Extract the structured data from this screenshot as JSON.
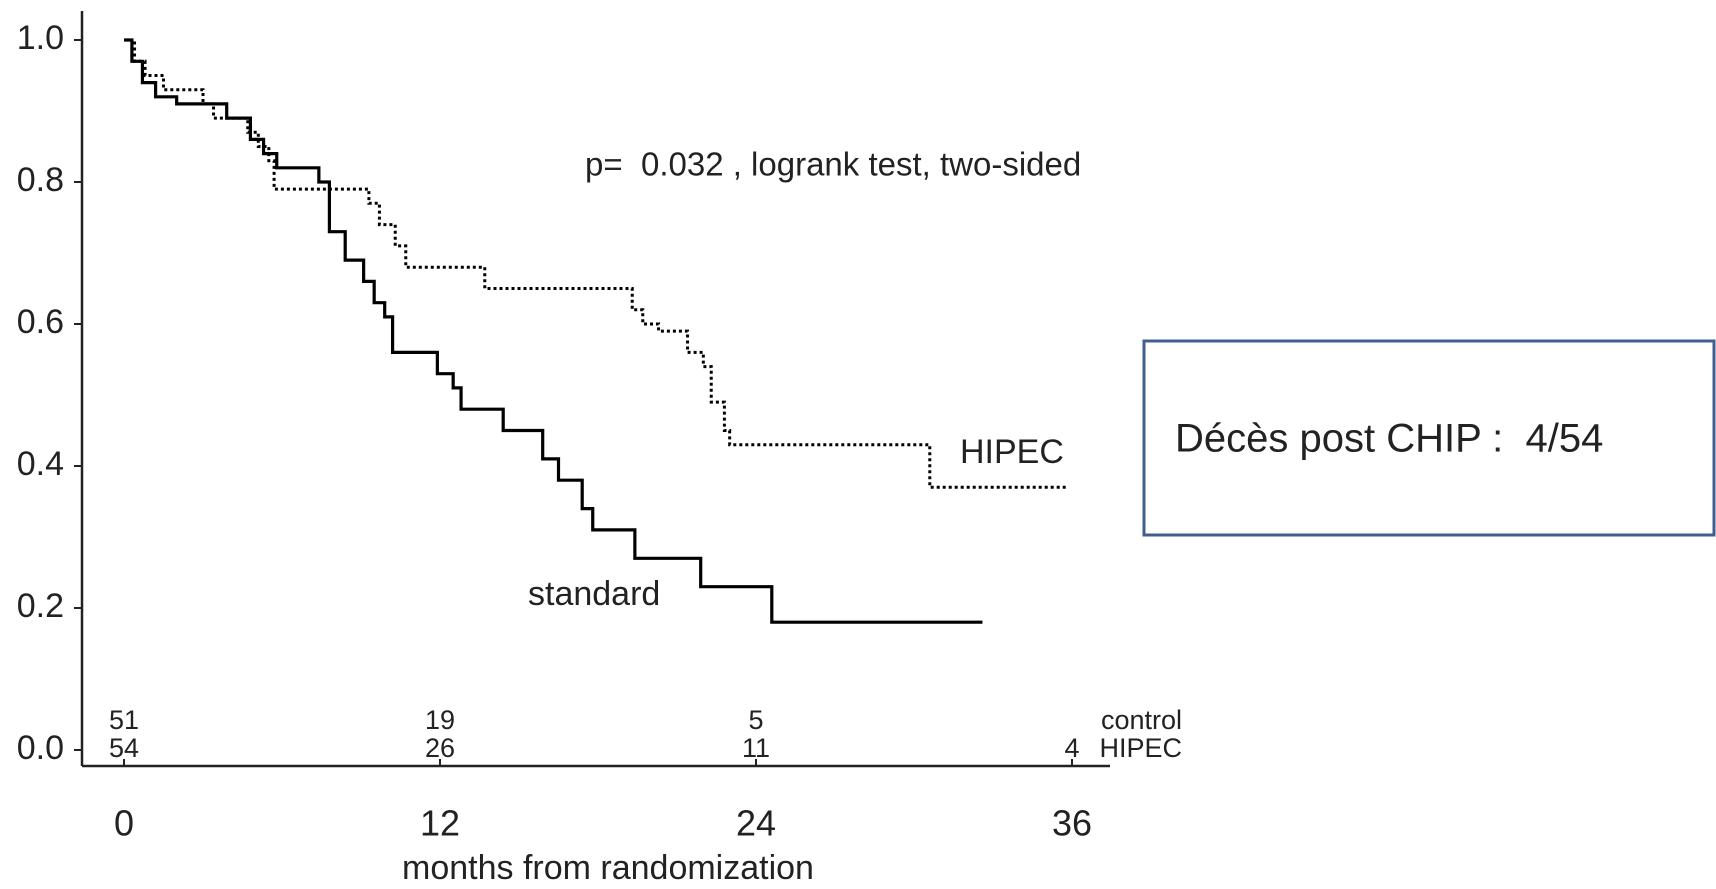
{
  "chart_data": {
    "type": "step",
    "xlabel": "months from randomization",
    "annotations": [
      "p=  0.032 , logrank test, two-sided"
    ],
    "xlim": [
      0,
      36
    ],
    "ylim": [
      0,
      1
    ],
    "xticks": [
      0,
      12,
      24,
      36
    ],
    "yticks": [
      {
        "value": 0,
        "label": "0.0"
      },
      0.2,
      0.4,
      0.6,
      0.8,
      {
        "value": 1,
        "label": "1.0"
      }
    ],
    "series": [
      {
        "name": "standard",
        "color": "#000000",
        "style": "solid",
        "x": [
          0,
          0.3,
          0.7,
          1.2,
          2.0,
          3.9,
          4.8,
          5.3,
          5.8,
          7.4,
          7.8,
          8.4,
          9.1,
          9.5,
          9.9,
          10.2,
          11.9,
          12.5,
          12.8,
          14.4,
          15.9,
          16.5,
          17.4,
          17.8,
          19.4,
          21.9,
          24.6,
          32.6
        ],
        "values": [
          1.0,
          0.97,
          0.94,
          0.92,
          0.91,
          0.89,
          0.86,
          0.84,
          0.82,
          0.8,
          0.73,
          0.69,
          0.66,
          0.63,
          0.61,
          0.56,
          0.53,
          0.51,
          0.48,
          0.45,
          0.41,
          0.38,
          0.34,
          0.31,
          0.27,
          0.23,
          0.18,
          0.18
        ]
      },
      {
        "name": "HIPEC",
        "color": "#000000",
        "style": "dotted",
        "x": [
          0,
          0.4,
          0.8,
          1.5,
          3.0,
          3.4,
          4.7,
          5.1,
          5.5,
          5.7,
          9.3,
          9.7,
          10.3,
          10.7,
          13.7,
          19.3,
          19.7,
          20.3,
          21.4,
          22.0,
          22.3,
          22.8,
          23.0,
          30.6,
          35.8
        ],
        "values": [
          1.0,
          0.97,
          0.95,
          0.93,
          0.91,
          0.89,
          0.87,
          0.85,
          0.83,
          0.79,
          0.77,
          0.74,
          0.71,
          0.68,
          0.65,
          0.62,
          0.6,
          0.59,
          0.56,
          0.54,
          0.49,
          0.45,
          0.43,
          0.37,
          0.37
        ]
      }
    ],
    "at_risk": {
      "times": [
        0,
        12,
        24,
        36
      ],
      "rows": [
        {
          "name": "control",
          "values": [
            51,
            19,
            5,
            null
          ]
        },
        {
          "name": "HIPEC",
          "values": [
            54,
            26,
            11,
            4
          ]
        }
      ]
    }
  },
  "note_box": {
    "text": "Décès post CHIP :  4/54"
  }
}
